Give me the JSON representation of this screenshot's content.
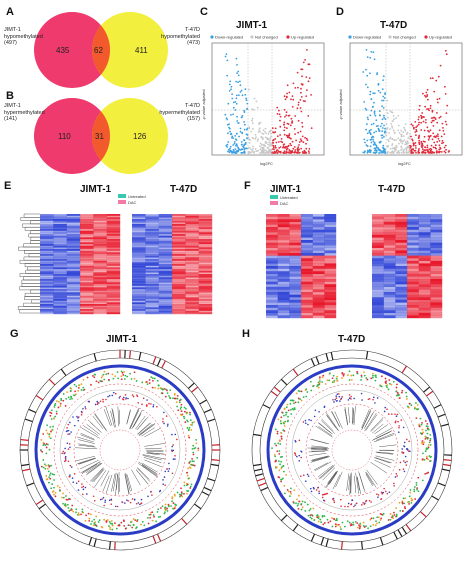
{
  "panels": {
    "A": "A",
    "B": "B",
    "C": "C",
    "D": "D",
    "E": "E",
    "F": "F",
    "G": "G",
    "H": "H"
  },
  "venn_a": {
    "left_label_1": "JIMT-1",
    "left_label_2": "hypomethylated",
    "left_count": "(497)",
    "right_label_1": "T-47D",
    "right_label_2": "hypomethylated",
    "right_count": "(473)",
    "left_only": "435",
    "overlap": "62",
    "right_only": "411"
  },
  "venn_b": {
    "left_label_1": "JIMT-1",
    "left_label_2": "hypermethylated",
    "left_count": "(141)",
    "right_label_1": "T-47D",
    "right_label_2": "hypermethylated",
    "right_count": "(157)",
    "left_only": "110",
    "overlap": "31",
    "right_only": "126"
  },
  "volcano_c": {
    "title": "JIMT-1",
    "legend": [
      "Down-regulated",
      "Not changed",
      "Up-regulated"
    ],
    "xlabel": "log2FC",
    "ylabel": "-p value adjusted"
  },
  "volcano_d": {
    "title": "T-47D",
    "legend": [
      "Down-regulated",
      "Not changed",
      "Up-regulated"
    ],
    "xlabel": "log2FC",
    "ylabel": "-p value adjusted"
  },
  "heat_e": {
    "title_left": "JIMT-1",
    "title_right": "T-47D",
    "legend": [
      "Untreated",
      "DAC"
    ]
  },
  "heat_f": {
    "title_left": "JIMT-1",
    "title_right": "T-47D",
    "legend": [
      "Untreated",
      "DAC"
    ]
  },
  "circos_g": {
    "title": "JIMT-1"
  },
  "circos_h": {
    "title": "T-47D"
  },
  "colors": {
    "venn_left": "#ee3a6c",
    "venn_right": "#f2ef3f",
    "venn_overlap": "#f25a2d",
    "down": "#3aa0e0",
    "notchanged": "#c8c8c8",
    "up": "#e02b3a",
    "heat_high": "#e8192c",
    "heat_low": "#2a3fd6",
    "untreated": "#36c9b0",
    "dac": "#f07aa8"
  }
}
